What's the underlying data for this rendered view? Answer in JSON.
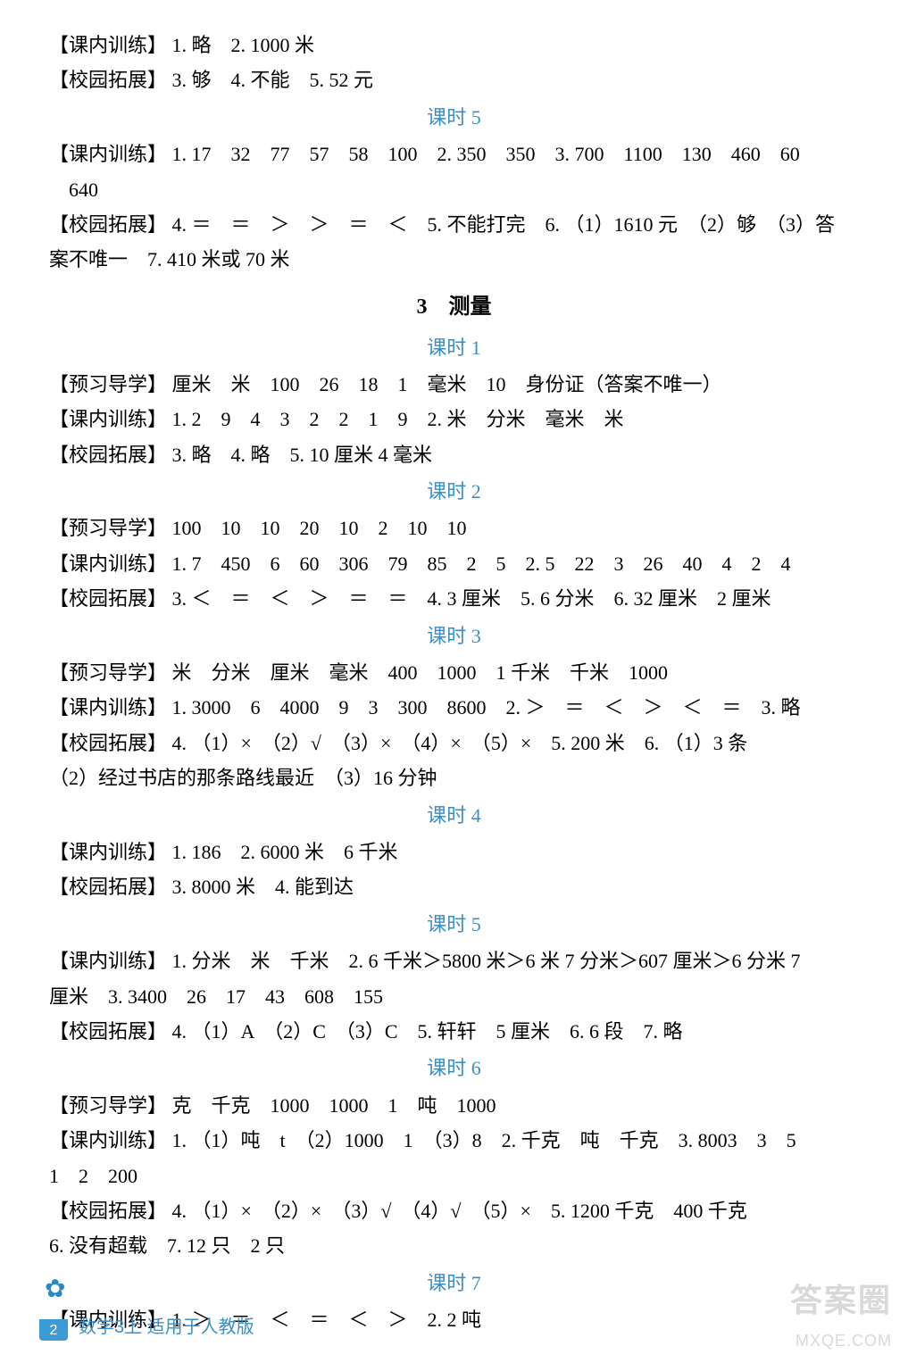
{
  "textcolor": "#000000",
  "accentcolor": "#3a8fc6",
  "background": "#ffffff",
  "watermark_color": "#d9d9d9",
  "fontsize_body": 22,
  "fontsize_section": 24,
  "top": [
    {
      "tag": "【课内训练】",
      "text": " 1. 略　2. 1000 米"
    },
    {
      "tag": "【校园拓展】",
      "text": " 3. 够　4. 不能　5. 52 元"
    }
  ],
  "lesson_a": "课时 5",
  "block_a": [
    {
      "tag": "【课内训练】",
      "text": " 1. 17　32　77　57　58　100　2. 350　350　3. 700　1100　130　460　60"
    },
    {
      "tag": "",
      "text": "　640"
    },
    {
      "tag": "【校园拓展】",
      "text": " 4. ＝　＝　＞　＞　＝　＜　5. 不能打完　6. （1）1610 元　（2）够　（3）答"
    },
    {
      "tag": "",
      "text": "案不唯一　7. 410 米或 70 米"
    }
  ],
  "section3": "3　测量",
  "lesson_b1": "课时 1",
  "block_b1": [
    {
      "tag": "【预习导学】",
      "text": " 厘米　米　100　26　18　1　毫米　10　身份证（答案不唯一）"
    },
    {
      "tag": "【课内训练】",
      "text": " 1. 2　9　4　3　2　2　1　9　2. 米　分米　毫米　米"
    },
    {
      "tag": "【校园拓展】",
      "text": " 3. 略　4. 略　5. 10 厘米 4 毫米"
    }
  ],
  "lesson_b2": "课时 2",
  "block_b2": [
    {
      "tag": "【预习导学】",
      "text": " 100　10　10　20　10　2　10　10"
    },
    {
      "tag": "【课内训练】",
      "text": " 1. 7　450　6　60　306　79　85　2　5　2. 5　22　3　26　40　4　2　4"
    },
    {
      "tag": "【校园拓展】",
      "text": " 3. ＜　＝　＜　＞　＝　＝　4. 3 厘米　5. 6 分米　6. 32 厘米　2 厘米"
    }
  ],
  "lesson_b3": "课时 3",
  "block_b3": [
    {
      "tag": "【预习导学】",
      "text": " 米　分米　厘米　毫米　400　1000　1 千米　千米　1000"
    },
    {
      "tag": "【课内训练】",
      "text": " 1. 3000　6　4000　9　3　300　8600　2. ＞　＝　＜　＞　＜　＝　3. 略"
    },
    {
      "tag": "【校园拓展】",
      "text": " 4. （1）×　（2）√　（3）×　（4）×　（5）×　5. 200 米　6. （1）3 条"
    },
    {
      "tag": "",
      "text": "（2）经过书店的那条路线最近　（3）16 分钟"
    }
  ],
  "lesson_b4": "课时 4",
  "block_b4": [
    {
      "tag": "【课内训练】",
      "text": " 1. 186　2. 6000 米　6 千米"
    },
    {
      "tag": "【校园拓展】",
      "text": " 3. 8000 米　4. 能到达"
    }
  ],
  "lesson_b5": "课时 5",
  "block_b5": [
    {
      "tag": "【课内训练】",
      "text": " 1. 分米　米　千米　2. 6 千米＞5800 米＞6 米 7 分米＞607 厘米＞6 分米 7"
    },
    {
      "tag": "",
      "text": "厘米　3. 3400　26　17　43　608　155"
    },
    {
      "tag": "【校园拓展】",
      "text": " 4. （1）A　（2）C　（3）C　5. 轩轩　5 厘米　6. 6 段　7. 略"
    }
  ],
  "lesson_b6": "课时 6",
  "block_b6": [
    {
      "tag": "【预习导学】",
      "text": " 克　千克　1000　1000　1　吨　1000"
    },
    {
      "tag": "【课内训练】",
      "text": " 1. （1）吨　t　（2）1000　1　（3）8　2. 千克　吨　千克　3. 8003　3　5"
    },
    {
      "tag": "",
      "text": "1　2　200"
    },
    {
      "tag": "【校园拓展】",
      "text": " 4. （1）×　（2）×　（3）√　（4）√　（5）×　5. 1200 千克　400 千克"
    },
    {
      "tag": "",
      "text": "6. 没有超载　7. 12 只　2 只"
    }
  ],
  "lesson_b7": "课时 7",
  "block_b7": [
    {
      "tag": "【课内训练】",
      "text": " 1. ＞　＝　＜　＝　＜　＞　2. 2 吨"
    }
  ],
  "footer": {
    "page": "2",
    "text": "数学3上 适用于人教版"
  },
  "watermark": {
    "line1": "答案圈",
    "line2": "MXQE.COM"
  }
}
